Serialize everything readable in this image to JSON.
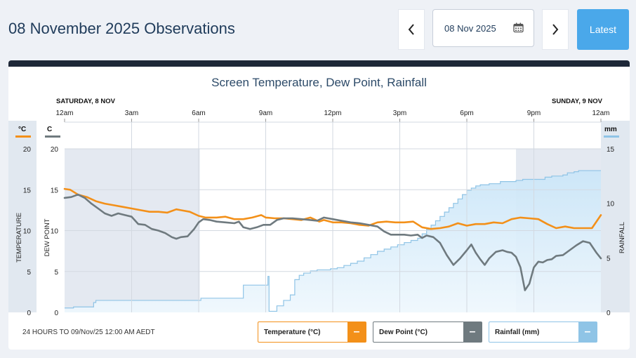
{
  "header": {
    "title": "08 November 2025 Observations",
    "date_value": "08 Nov 2025",
    "latest_label": "Latest"
  },
  "colors": {
    "temperature": "#f39019",
    "dew_point": "#6f7a7f",
    "rainfall_line": "#8fc4e6",
    "rainfall_fill": "#d6ecfa",
    "night_shade": "#e4e9f1"
  },
  "footer": {
    "period_note": "24 HOURS TO 09/Nov/25 12:00 AM AEDT"
  },
  "legend": {
    "temperature": "Temperature (°C)",
    "dew_point": "Dew Point (°C)",
    "rainfall": "Rainfall (mm)",
    "toggle_symbol": "–"
  },
  "chart_data": {
    "type": "line",
    "title": "Screen Temperature, Dew Point, Rainfall",
    "day_labels": [
      "SATURDAY, 8 NOV",
      "SUNDAY, 9 NOV"
    ],
    "x_tick_labels": [
      "12am",
      "3am",
      "6am",
      "9am",
      "12pm",
      "3pm",
      "6pm",
      "9pm",
      "12am"
    ],
    "x_unit": "hours since 12am 8 Nov",
    "x_range": [
      0,
      24
    ],
    "night_periods": [
      [
        0,
        6.05
      ],
      [
        20.2,
        24
      ]
    ],
    "axes": {
      "temperature": {
        "unit": "°C",
        "label": "TEMPERATURE",
        "range": [
          0,
          20
        ],
        "ticks": [
          0,
          5,
          10,
          15,
          20
        ]
      },
      "dew_point": {
        "unit": "C",
        "label": "DEW POINT",
        "range": [
          0,
          20
        ],
        "ticks": [
          0,
          5,
          10,
          15,
          20
        ]
      },
      "rainfall": {
        "unit": "mm",
        "label": "RAINFALL",
        "range": [
          0,
          15
        ],
        "ticks": [
          0,
          5,
          10,
          15
        ]
      }
    },
    "series": [
      {
        "name": "Temperature",
        "axis": "temperature",
        "step": false,
        "x": [
          0,
          0.25,
          0.6,
          1,
          1.4,
          1.8,
          2.2,
          2.6,
          3,
          3.4,
          3.8,
          4.2,
          4.6,
          5,
          5.2,
          5.6,
          6,
          6.3,
          6.8,
          7.2,
          7.6,
          8,
          8.4,
          8.8,
          9,
          9.4,
          9.8,
          10.2,
          10.6,
          11,
          11.4,
          11.6,
          12,
          12.4,
          12.8,
          13.2,
          13.6,
          14,
          14.4,
          14.8,
          15.2,
          15.6,
          16,
          16.4,
          16.8,
          17.2,
          17.6,
          18,
          18.4,
          18.8,
          19.2,
          19.6,
          20,
          20.4,
          20.8,
          21.2,
          21.6,
          22,
          22.4,
          22.8,
          23.2,
          23.6,
          24
        ],
        "y": [
          15.1,
          15.0,
          14.4,
          14.1,
          13.6,
          13.3,
          13.1,
          12.9,
          12.7,
          12.5,
          12.3,
          12.3,
          12.2,
          12.6,
          12.5,
          12.3,
          11.8,
          11.6,
          11.6,
          11.7,
          11.4,
          11.4,
          11.6,
          11.9,
          11.6,
          11.5,
          11.5,
          11.4,
          11.3,
          11.6,
          11.1,
          11.3,
          11.0,
          11.0,
          10.9,
          10.7,
          10.6,
          11.0,
          11.1,
          11.0,
          11.0,
          11.1,
          10.4,
          10.2,
          10.3,
          10.5,
          10.9,
          10.6,
          10.8,
          10.8,
          11.0,
          10.9,
          11.4,
          11.6,
          11.5,
          11.4,
          10.8,
          10.3,
          10.5,
          10.3,
          10.3,
          10.3,
          11.9
        ]
      },
      {
        "name": "Dew Point",
        "axis": "dew_point",
        "step": false,
        "x": [
          0,
          0.3,
          0.6,
          0.9,
          1.2,
          1.5,
          1.8,
          2.1,
          2.4,
          2.7,
          3,
          3.3,
          3.6,
          3.9,
          4.2,
          4.5,
          4.8,
          5,
          5.2,
          5.5,
          5.8,
          6,
          6.2,
          6.5,
          6.8,
          7.2,
          7.6,
          7.8,
          8,
          8.3,
          8.6,
          8.9,
          9.2,
          9.5,
          9.8,
          10.2,
          10.6,
          11,
          11.3,
          11.6,
          12,
          12.4,
          12.8,
          13.2,
          13.6,
          14,
          14.3,
          14.6,
          14.9,
          15.2,
          15.5,
          15.8,
          16,
          16.2,
          16.5,
          16.8,
          17.1,
          17.4,
          17.7,
          18,
          18.2,
          18.4,
          18.6,
          18.8,
          19,
          19.3,
          19.6,
          19.8,
          20,
          20.2,
          20.4,
          20.6,
          20.8,
          21,
          21.2,
          21.4,
          21.6,
          21.8,
          22,
          22.3,
          22.6,
          22.9,
          23.2,
          23.5,
          23.8,
          24
        ],
        "y": [
          14.0,
          14.1,
          14.4,
          14.0,
          13.3,
          12.7,
          12.1,
          11.8,
          12.1,
          11.9,
          11.7,
          10.8,
          10.7,
          10.2,
          10.0,
          9.7,
          9.2,
          9.0,
          9.2,
          9.3,
          10.2,
          11.0,
          11.4,
          11.3,
          11.1,
          11.0,
          10.9,
          11.1,
          10.4,
          10.2,
          10.4,
          10.7,
          10.7,
          11.3,
          11.5,
          11.5,
          11.4,
          11.3,
          11.2,
          11.6,
          11.4,
          11.2,
          11.0,
          10.9,
          10.7,
          10.5,
          9.9,
          9.5,
          9.5,
          9.5,
          9.4,
          9.5,
          9.1,
          9.4,
          9.2,
          8.5,
          7.0,
          5.8,
          6.6,
          7.6,
          8.3,
          7.3,
          6.5,
          5.8,
          6.6,
          7.4,
          7.6,
          7.4,
          7.3,
          6.8,
          5.5,
          2.7,
          3.5,
          5.5,
          6.2,
          6.1,
          6.4,
          6.5,
          6.9,
          7.0,
          7.6,
          8.2,
          8.7,
          8.5,
          7.3,
          6.6
        ]
      },
      {
        "name": "Rainfall",
        "axis": "rainfall",
        "step": true,
        "x": [
          0,
          0.4,
          1.3,
          1.4,
          6.05,
          6.1,
          8,
          9.1,
          9.15,
          9.5,
          9.8,
          10.1,
          10.3,
          10.5,
          10.7,
          11,
          11.3,
          11.6,
          11.9,
          12.2,
          12.5,
          12.8,
          13.1,
          13.4,
          13.7,
          14,
          14.3,
          14.6,
          14.9,
          15.2,
          15.5,
          15.8,
          16,
          16.2,
          16.4,
          16.6,
          16.8,
          17,
          17.2,
          17.4,
          17.6,
          17.8,
          18,
          18.2,
          18.4,
          18.6,
          18.8,
          19,
          19.2,
          19.5,
          19.8,
          20.2,
          20.5,
          20.8,
          21.5,
          21.8,
          22.3,
          22.5,
          22.8,
          23,
          23.5,
          24
        ],
        "y": [
          0.4,
          0.5,
          0.9,
          1.1,
          1.1,
          1.3,
          2.5,
          3.3,
          0.1,
          0.6,
          1.1,
          1.6,
          3.0,
          3.4,
          3.6,
          3.8,
          3.9,
          3.9,
          4.0,
          4.1,
          4.3,
          4.5,
          4.7,
          5.0,
          5.3,
          5.6,
          5.8,
          6.0,
          6.2,
          6.4,
          6.6,
          6.8,
          7.2,
          7.6,
          8.0,
          8.4,
          8.8,
          9.2,
          9.6,
          10.0,
          10.4,
          10.8,
          11.2,
          11.4,
          11.6,
          11.7,
          11.7,
          11.8,
          11.8,
          12.0,
          12.0,
          12.1,
          12.2,
          12.2,
          12.4,
          12.5,
          12.6,
          12.8,
          12.9,
          13.0,
          13.0,
          13.0
        ]
      }
    ]
  }
}
